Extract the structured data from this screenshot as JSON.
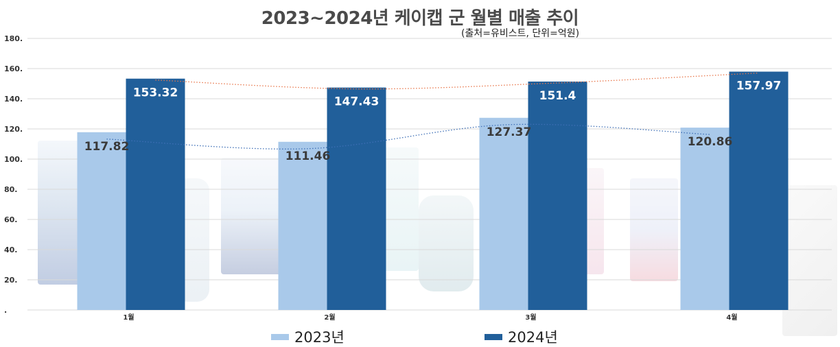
{
  "chart_data": {
    "type": "bar",
    "title": "2023~2024년 케이캡 군 월별 매출 추이",
    "subtitle": "(출처=유비스트, 단위=억원)",
    "categories": [
      "1월",
      "2월",
      "3월",
      "4월"
    ],
    "series": [
      {
        "name": "2023년",
        "values": [
          117.82,
          111.46,
          127.37,
          120.86
        ],
        "color": "#a9c9ea",
        "trend_color": "#3e6fb6"
      },
      {
        "name": "2024년",
        "values": [
          153.32,
          147.43,
          151.4,
          157.97
        ],
        "color": "#215f9a",
        "trend_color": "#e8764a"
      }
    ],
    "y_ticks": [
      "180.",
      "160.",
      "140.",
      "120.",
      "100.",
      "80.",
      "60.",
      "40.",
      "20.",
      "."
    ],
    "ylim": [
      0,
      180
    ],
    "grid": true,
    "legend_position": "bottom",
    "trendlines": "dotted"
  }
}
